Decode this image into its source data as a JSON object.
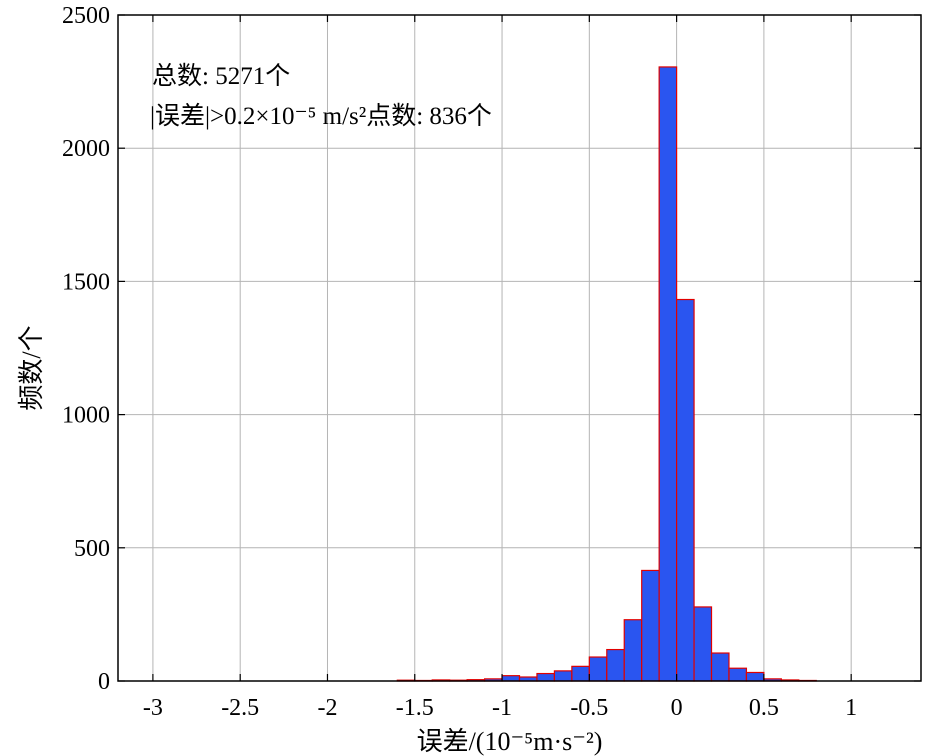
{
  "chart_data": {
    "type": "bar",
    "title": "",
    "xlabel": "误差/(10⁻⁵m·s⁻²)",
    "ylabel": "频数/个",
    "xlim": [
      -3.2,
      1.4
    ],
    "ylim": [
      0,
      2500
    ],
    "xticks": [
      -3,
      -2.5,
      -2,
      -1.5,
      -1,
      -0.5,
      0,
      0.5,
      1
    ],
    "xtick_labels": [
      "-3",
      "-2.5",
      "-2",
      "-1.5",
      "-1",
      "-0.5",
      "0",
      "0.5",
      "1"
    ],
    "yticks": [
      0,
      500,
      1000,
      1500,
      2000,
      2500
    ],
    "ytick_labels": [
      "0",
      "500",
      "1000",
      "1500",
      "2000",
      "2500"
    ],
    "grid": true,
    "bar_width": 0.1,
    "bar_fill": "#2a55f0",
    "bar_edge": "#e00000",
    "bin_centers": [
      -1.55,
      -1.45,
      -1.35,
      -1.25,
      -1.15,
      -1.05,
      -0.95,
      -0.85,
      -0.75,
      -0.65,
      -0.55,
      -0.45,
      -0.35,
      -0.25,
      -0.15,
      -0.05,
      0.05,
      0.15,
      0.25,
      0.35,
      0.45,
      0.55,
      0.65,
      0.75
    ],
    "values": [
      3,
      2,
      4,
      3,
      5,
      8,
      20,
      15,
      28,
      38,
      55,
      90,
      118,
      230,
      415,
      2305,
      1432,
      278,
      105,
      48,
      32,
      8,
      4,
      2
    ],
    "annotations": [
      "总数: 5271个",
      "|误差|>0.2×10⁻⁵ m/s²点数: 836个"
    ]
  }
}
